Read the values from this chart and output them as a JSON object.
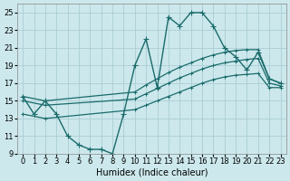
{
  "xlabel": "Humidex (Indice chaleur)",
  "bg_color": "#cce8ec",
  "grid_color": "#aacdd4",
  "line_color": "#1a6b6b",
  "xlim": [
    -0.5,
    23.5
  ],
  "ylim": [
    9,
    26
  ],
  "xticks": [
    0,
    1,
    2,
    3,
    4,
    5,
    6,
    7,
    8,
    9,
    10,
    11,
    12,
    13,
    14,
    15,
    16,
    17,
    18,
    19,
    20,
    21,
    22,
    23
  ],
  "yticks": [
    9,
    11,
    13,
    15,
    17,
    19,
    21,
    23,
    25
  ],
  "line_main_x": [
    0,
    1,
    2,
    3,
    4,
    5,
    6,
    7,
    8,
    9,
    10,
    11,
    12,
    13,
    14,
    15,
    16,
    17,
    18,
    19,
    20,
    21,
    22,
    23
  ],
  "line_main_y": [
    15.5,
    13.5,
    15.0,
    13.5,
    11.0,
    10.0,
    9.5,
    9.5,
    9.0,
    13.5,
    19.0,
    22.0,
    16.5,
    24.5,
    23.5,
    25.0,
    25.0,
    23.5,
    21.0,
    20.0,
    18.5,
    20.5,
    17.5,
    17.0
  ],
  "line_top_x": [
    0,
    2,
    10,
    11,
    12,
    13,
    14,
    15,
    16,
    17,
    18,
    19,
    20,
    21,
    22,
    23
  ],
  "line_top_y": [
    15.5,
    15.0,
    16.0,
    16.8,
    17.5,
    18.2,
    18.8,
    19.3,
    19.8,
    20.2,
    20.5,
    20.7,
    20.8,
    20.8,
    17.5,
    17.0
  ],
  "line_mid_x": [
    0,
    2,
    10,
    11,
    12,
    13,
    14,
    15,
    16,
    17,
    18,
    19,
    20,
    21,
    22,
    23
  ],
  "line_mid_y": [
    15.0,
    14.5,
    15.2,
    15.8,
    16.4,
    17.0,
    17.6,
    18.1,
    18.6,
    19.0,
    19.3,
    19.5,
    19.7,
    19.8,
    17.0,
    16.7
  ],
  "line_bot_x": [
    0,
    2,
    10,
    11,
    12,
    13,
    14,
    15,
    16,
    17,
    18,
    19,
    20,
    21,
    22,
    23
  ],
  "line_bot_y": [
    13.5,
    13.0,
    14.0,
    14.5,
    15.0,
    15.5,
    16.0,
    16.5,
    17.0,
    17.4,
    17.7,
    17.9,
    18.0,
    18.1,
    16.5,
    16.5
  ]
}
